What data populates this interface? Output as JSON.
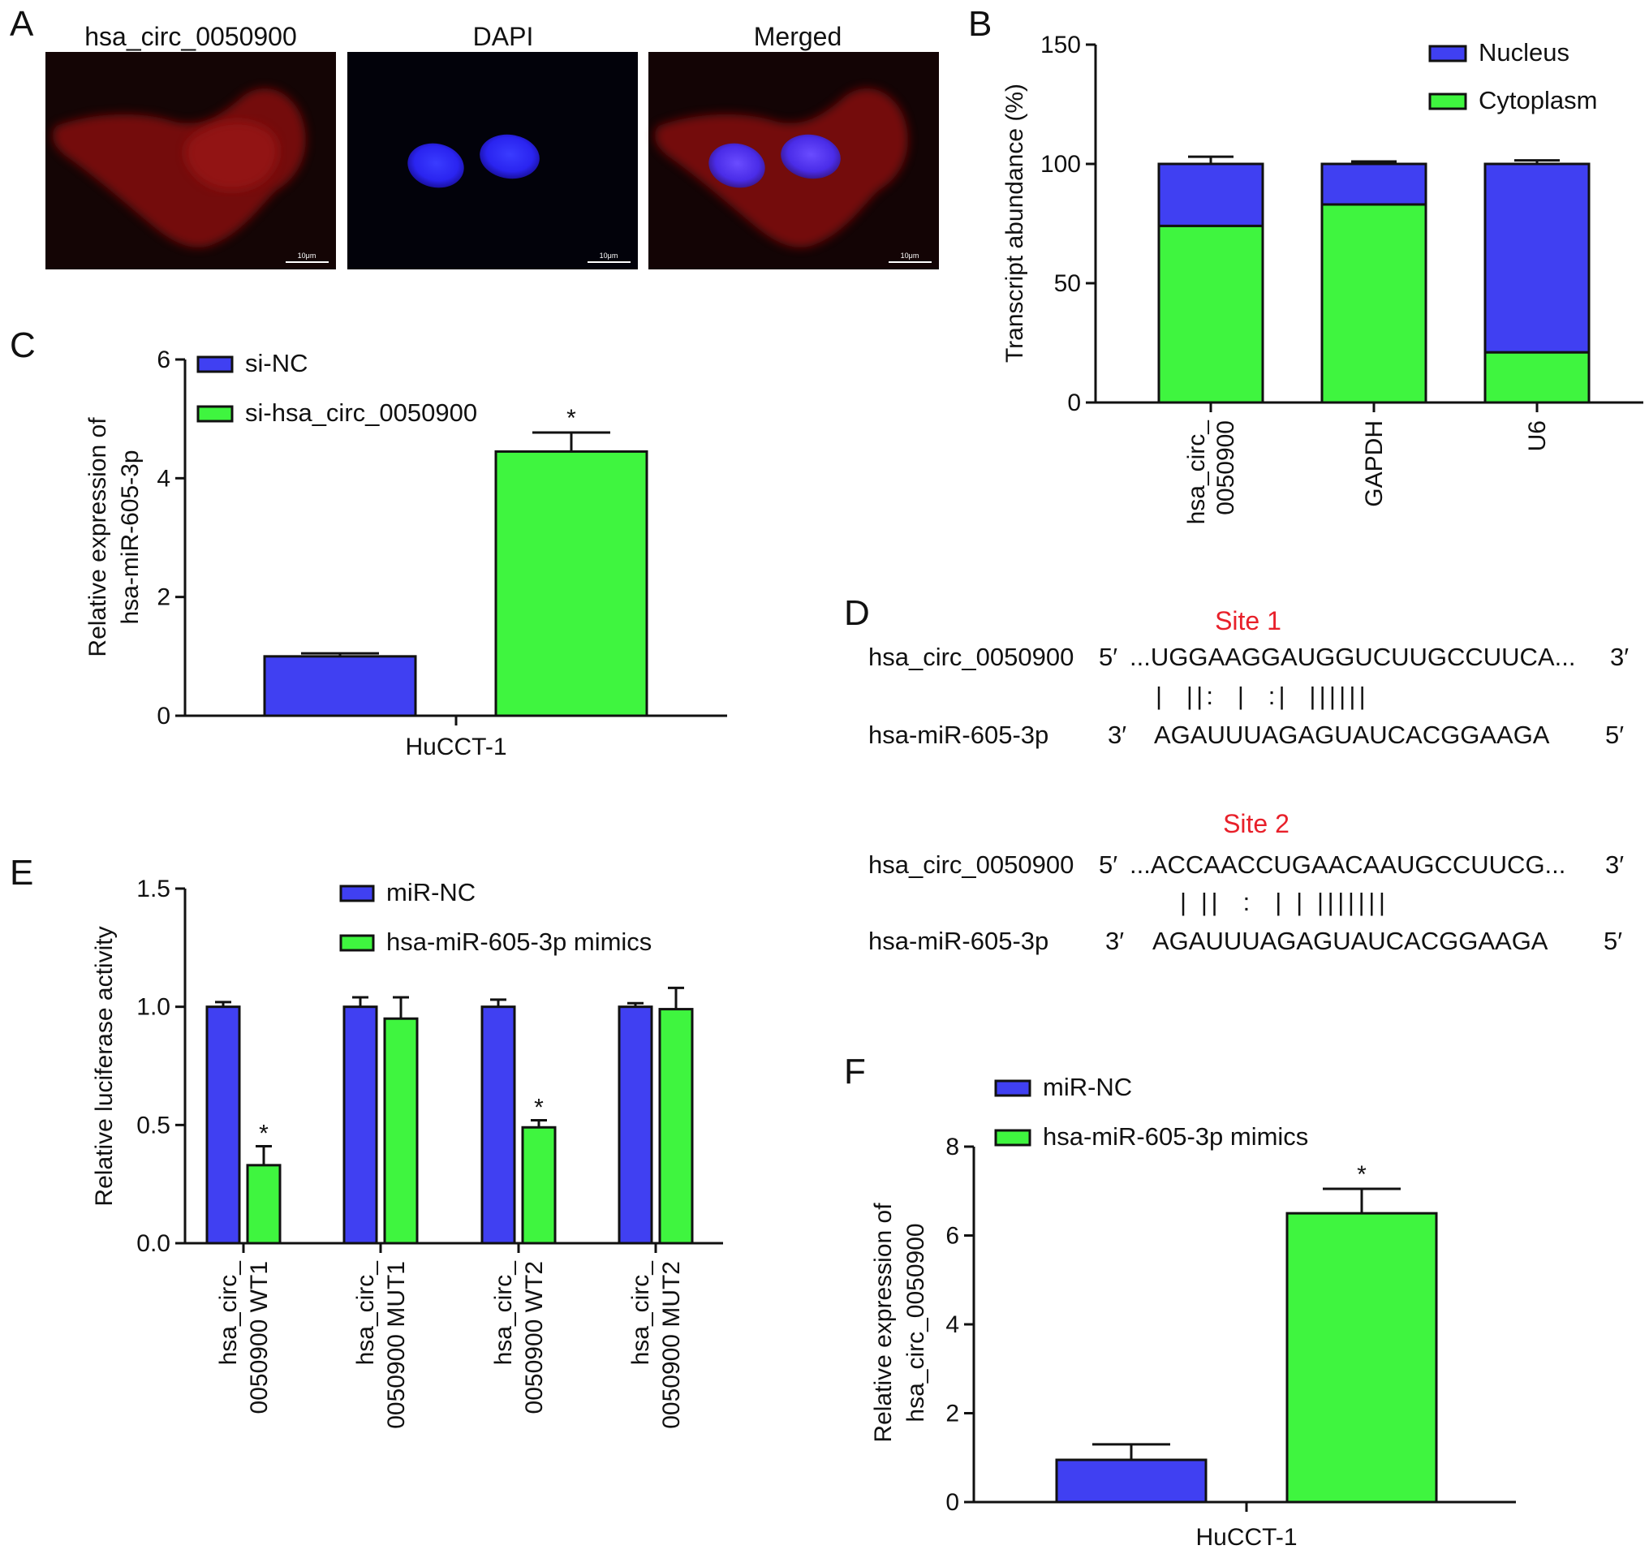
{
  "panels": {
    "a": "A",
    "b": "B",
    "c": "C",
    "d": "D",
    "e": "E",
    "f": "F"
  },
  "panel_a": {
    "titles": [
      "hsa_circ_0050900",
      "DAPI",
      "Merged"
    ],
    "scale_bar": "10μm"
  },
  "panel_d": {
    "sites": [
      {
        "label": "Site 1",
        "circ_name": "hsa_circ_0050900",
        "circ_prime5": "5′",
        "circ_seq": "...UGGAAGGAUGGUCUUGCCUUCA...",
        "circ_prime3": "3′",
        "pairs": "|  ||:  |  :|  ||||||",
        "mir_name": "hsa-miR-605-3p",
        "mir_prime3": "3′",
        "mir_seq": "AGAUUUAGAGUAUCACGGAAGA",
        "mir_prime5": "5′"
      },
      {
        "label": "Site 2",
        "circ_name": "hsa_circ_0050900",
        "circ_prime5": "5′",
        "circ_seq": "...ACCAACCUGAACAAUGCCUUCG...",
        "circ_prime3": "3′",
        "pairs": "| ||  :  | | |||||||",
        "mir_name": "hsa-miR-605-3p",
        "mir_prime3": "3′",
        "mir_seq": "AGAUUUAGAGUAUCACGGAAGA",
        "mir_prime5": "5′"
      }
    ]
  },
  "colors": {
    "blue": "#4040f2",
    "green": "#3ff53f",
    "red_text": "#e8202a"
  },
  "chart_data": [
    {
      "id": "B",
      "type": "bar",
      "stacked": true,
      "categories": [
        "hsa_circ_\n0050900",
        "GAPDH",
        "U6"
      ],
      "category_lines": [
        [
          "hsa_circ_",
          "0050900"
        ],
        [
          "GAPDH"
        ],
        [
          "U6"
        ]
      ],
      "series": [
        {
          "name": "Cytoplasm",
          "color": "#3ff53f",
          "values": [
            74,
            83,
            21
          ],
          "errors": [
            2,
            1.5,
            1.5
          ]
        },
        {
          "name": "Nucleus",
          "color": "#4040f2",
          "values": [
            26,
            17,
            79
          ],
          "errors": [
            3,
            1,
            1.5
          ]
        }
      ],
      "legend_order": [
        "Nucleus",
        "Cytoplasm"
      ],
      "ylabel": "Transcript abundance (%)",
      "ylim": [
        0,
        150
      ],
      "yticks": [
        0,
        50,
        100,
        150
      ],
      "legend": "top-right"
    },
    {
      "id": "C",
      "type": "bar",
      "categories": [
        "HuCCT-1"
      ],
      "series": [
        {
          "name": "si-NC",
          "color": "#4040f2",
          "values": [
            1.0
          ],
          "errors": [
            0.05
          ]
        },
        {
          "name": "si-hsa_circ_0050900",
          "color": "#3ff53f",
          "values": [
            4.45
          ],
          "errors": [
            0.32
          ],
          "mark": "*"
        }
      ],
      "ylabel_lines": [
        "Relative expression of",
        "hsa-miR-605-3p"
      ],
      "ylim": [
        0,
        6
      ],
      "yticks": [
        0,
        2,
        4,
        6
      ],
      "legend": "top-left"
    },
    {
      "id": "E",
      "type": "bar",
      "categories": [
        "hsa_circ_\n0050900 WT1",
        "hsa_circ_\n0050900 MUT1",
        "hsa_circ_\n0050900 WT2",
        "hsa_circ_\n0050900 MUT2"
      ],
      "category_lines": [
        [
          "hsa_circ_",
          "0050900 WT1"
        ],
        [
          "hsa_circ_",
          "0050900 MUT1"
        ],
        [
          "hsa_circ_",
          "0050900 WT2"
        ],
        [
          "hsa_circ_",
          "0050900 MUT2"
        ]
      ],
      "series": [
        {
          "name": "miR-NC",
          "color": "#4040f2",
          "values": [
            1.0,
            1.0,
            1.0,
            1.0
          ],
          "errors": [
            0.02,
            0.04,
            0.03,
            0.015
          ]
        },
        {
          "name": "hsa-miR-605-3p mimics",
          "color": "#3ff53f",
          "values": [
            0.33,
            0.95,
            0.49,
            0.99
          ],
          "errors": [
            0.08,
            0.09,
            0.03,
            0.09
          ],
          "marks": [
            "*",
            "",
            "*",
            ""
          ]
        }
      ],
      "ylabel": "Relative luciferase activity",
      "ylim": [
        0,
        1.5
      ],
      "yticks": [
        "0.0",
        "0.5",
        "1.0",
        "1.5"
      ],
      "legend": "top"
    },
    {
      "id": "F",
      "type": "bar",
      "categories": [
        "HuCCT-1"
      ],
      "series": [
        {
          "name": "miR-NC",
          "color": "#4040f2",
          "values": [
            0.95
          ],
          "errors": [
            0.35
          ]
        },
        {
          "name": "hsa-miR-605-3p mimics",
          "color": "#3ff53f",
          "values": [
            6.5
          ],
          "errors": [
            0.55
          ],
          "mark": "*"
        }
      ],
      "ylabel_lines": [
        "Relative expression of",
        "hsa_circ_0050900"
      ],
      "ylim": [
        0,
        8
      ],
      "yticks": [
        0,
        2,
        4,
        6,
        8
      ],
      "legend": "top-left"
    }
  ]
}
